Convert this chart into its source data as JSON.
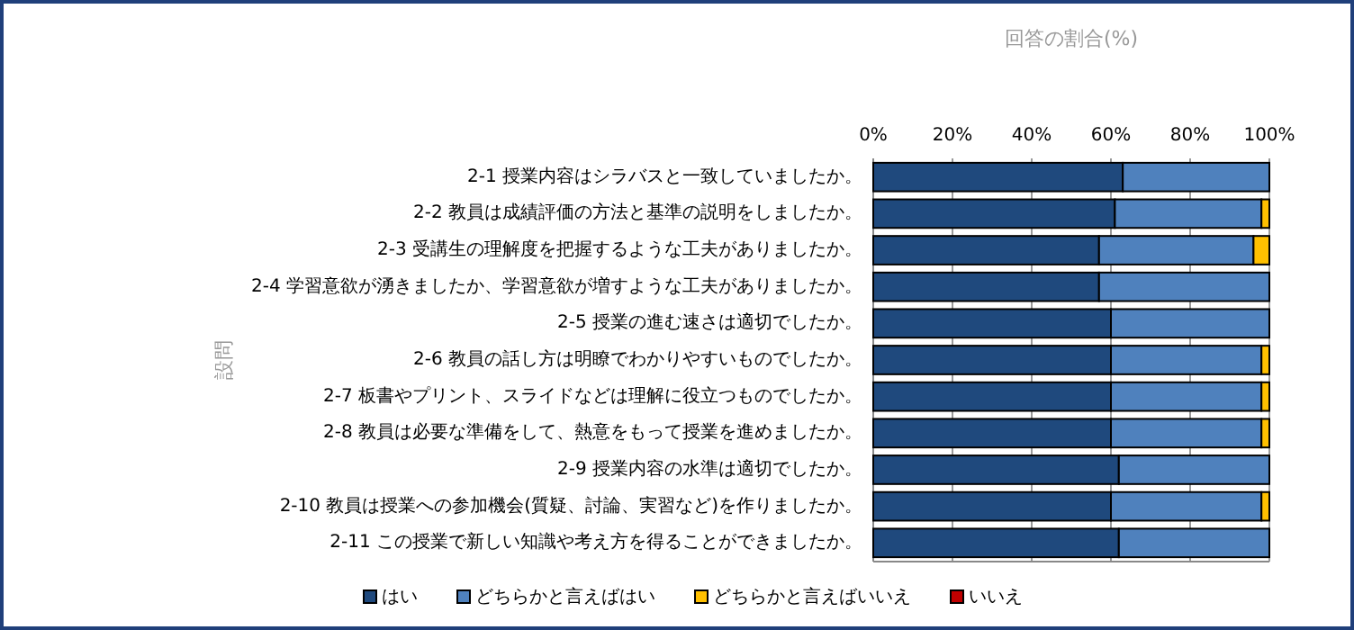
{
  "chart_data": {
    "type": "bar",
    "orientation": "horizontal",
    "stacked": true,
    "xlabel": "回答の割合(%)",
    "ylabel": "設問",
    "categories": [
      "2-1 授業内容はシラバスと一致していましたか。",
      "2-2 教員は成績評価の方法と基準の説明をしましたか。",
      "2-3 受講生の理解度を把握するような工夫がありましたか。",
      "2-4 学習意欲が湧きましたか、学習意欲が増すような工夫がありましたか。",
      "2-5 授業の進む速さは適切でしたか。",
      "2-6 教員の話し方は明瞭でわかりやすいものでしたか。",
      "2-7 板書やプリント、スライドなどは理解に役立つものでしたか。",
      "2-8 教員は必要な準備をして、熱意をもって授業を進めましたか。",
      "2-9 授業内容の水準は適切でしたか。",
      "2-10 教員は授業への参加機会(質疑、討論、実習など)を作りましたか。",
      "2-11 この授業で新しい知識や考え方を得ることができましたか。"
    ],
    "series": [
      {
        "name": "はい",
        "color": "#1f497d",
        "values": [
          63,
          61,
          57,
          57,
          60,
          60,
          60,
          60,
          62,
          60,
          62
        ]
      },
      {
        "name": "どちらかと言えばはい",
        "color": "#4f81bd",
        "values": [
          37,
          37,
          39,
          43,
          40,
          38,
          38,
          38,
          38,
          38,
          38
        ]
      },
      {
        "name": "どちらかと言えばいいえ",
        "color": "#ffc000",
        "values": [
          0,
          2,
          4,
          0,
          0,
          2,
          2,
          2,
          0,
          2,
          0
        ]
      },
      {
        "name": "いいえ",
        "color": "#c00000",
        "values": [
          0,
          0,
          0,
          0,
          0,
          0,
          0,
          0,
          0,
          0,
          0
        ]
      }
    ],
    "xlim": [
      0,
      100
    ],
    "xticks": [
      {
        "value": 0,
        "label": "0%"
      },
      {
        "value": 20,
        "label": "20%"
      },
      {
        "value": 40,
        "label": "40%"
      },
      {
        "value": 60,
        "label": "60%"
      },
      {
        "value": 80,
        "label": "80%"
      },
      {
        "value": 100,
        "label": "100%"
      }
    ],
    "grid": "x",
    "legend": "bottom"
  }
}
